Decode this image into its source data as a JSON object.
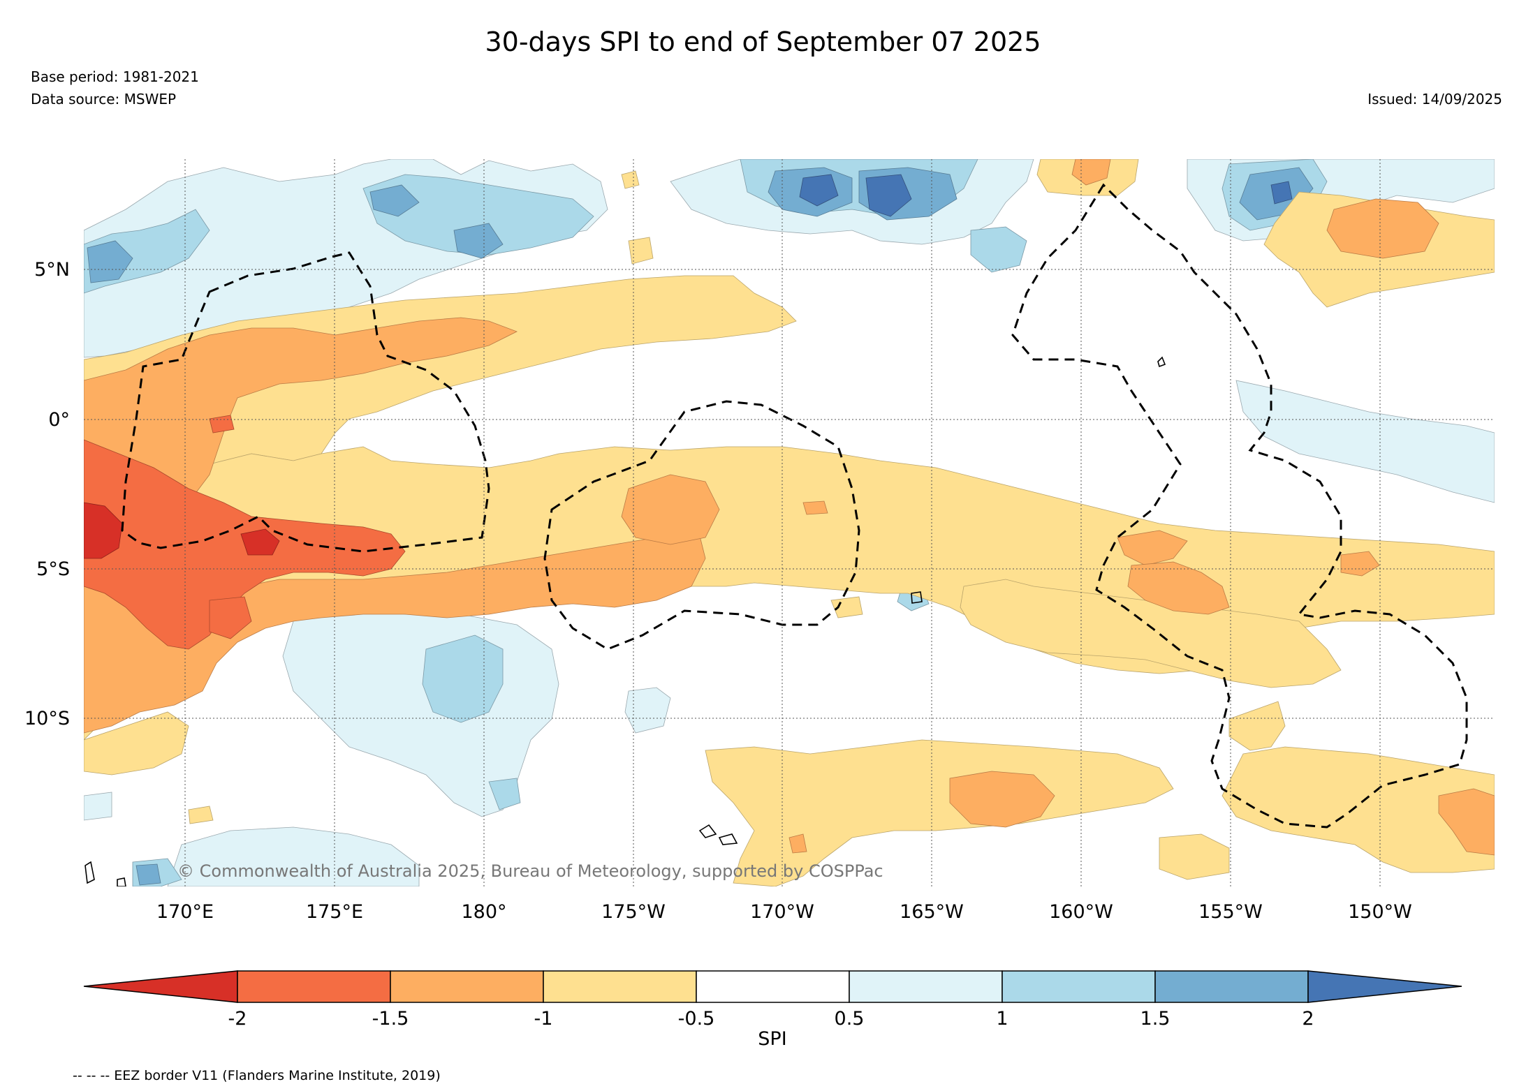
{
  "header": {
    "title": "30-days SPI to end of September 07 2025",
    "base_period": "Base period: 1981-2021",
    "data_source": "Data source: MSWEP",
    "issued": "Issued: 14/09/2025"
  },
  "map": {
    "lat_labels": [
      "5°N",
      "0°",
      "5°S",
      "10°S"
    ],
    "lon_labels": [
      "170°E",
      "175°E",
      "180°",
      "175°W",
      "170°W",
      "165°W",
      "160°W",
      "155°W",
      "150°W"
    ],
    "copyright": "© Commonwealth of Australia 2025, Bureau of Meteorology, supported by COSPPac",
    "colors": {
      "below_-2": "#d73027",
      "-2_-1.5": "#f46d43",
      "-1.5_-1": "#fdae61",
      "-1_-0.5": "#fee090",
      "-0.5_0.5": "#ffffff",
      "0.5_1": "#e0f3f8",
      "1_1.5": "#abd9e9",
      "1.5_2": "#74add1",
      "above_2": "#4575b4"
    }
  },
  "colorbar": {
    "label": "SPI",
    "ticks": [
      "-2",
      "-1.5",
      "-1",
      "-0.5",
      "0.5",
      "1",
      "1.5",
      "2"
    ]
  },
  "footer": {
    "eez_note": "-- -- -- EEZ border V11 (Flanders Marine Institute, 2019)"
  }
}
